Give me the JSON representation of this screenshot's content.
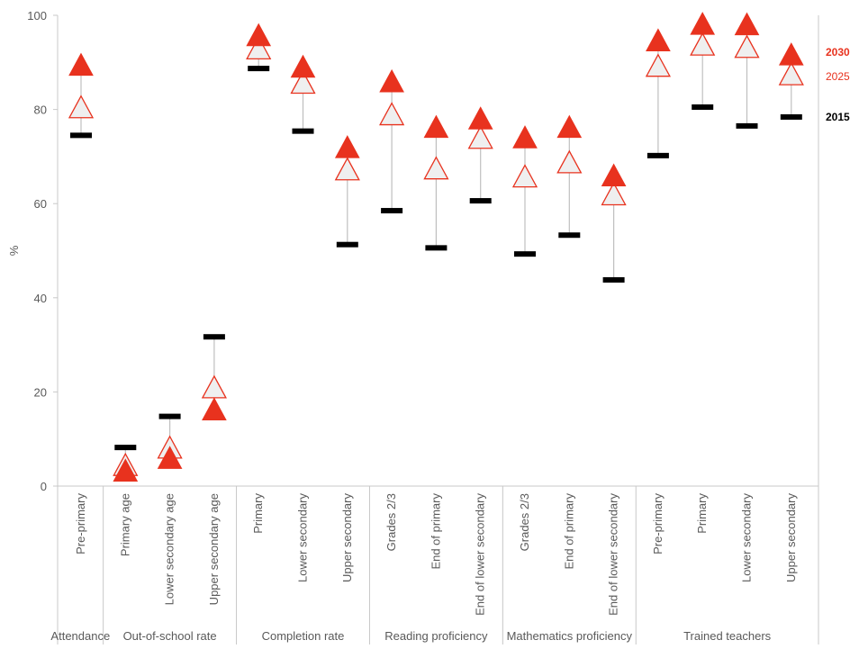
{
  "chart_data": {
    "type": "range-dot",
    "ylabel": "%",
    "ylim": [
      0,
      100
    ],
    "yticks": [
      0,
      20,
      40,
      60,
      80,
      100
    ],
    "grid": false,
    "colors": {
      "s2015": "#000000",
      "s2025": "#e8321e",
      "s2025_fill": "#efefef",
      "s2030": "#e8321e",
      "axis": "#c8c8c8",
      "range_line": "#bfbfbf",
      "tick_text": "#595959"
    },
    "groups": [
      {
        "label": "Attendance",
        "items": [
          "Pre-primary"
        ]
      },
      {
        "label": "Out-of-school rate",
        "items": [
          "Primary age",
          "Lower secondary age",
          "Upper secondary age"
        ]
      },
      {
        "label": "Completion rate",
        "items": [
          "Primary",
          "Lower secondary",
          "Upper secondary"
        ]
      },
      {
        "label": "Reading proficiency",
        "items": [
          "Grades 2/3",
          "End of primary",
          "End of lower secondary"
        ]
      },
      {
        "label": "Mathematics proficiency",
        "items": [
          "Grades 2/3",
          "End of primary",
          "End of lower secondary"
        ]
      },
      {
        "label": "Trained teachers",
        "items": [
          "Pre-primary",
          "Primary",
          "Lower secondary",
          "Upper secondary"
        ]
      }
    ],
    "categories": [
      "Pre-primary",
      "Primary age",
      "Lower secondary age",
      "Upper secondary age",
      "Primary",
      "Lower secondary",
      "Upper secondary",
      "Grades 2/3",
      "End of primary",
      "End of lower secondary",
      "Grades 2/3",
      "End of primary",
      "End of lower secondary",
      "Pre-primary",
      "Primary",
      "Lower secondary",
      "Upper secondary"
    ],
    "series": [
      {
        "name": "2015",
        "marker": "dash",
        "values": [
          74.5,
          8.2,
          14.8,
          31.7,
          88.7,
          75.4,
          51.3,
          58.5,
          50.6,
          60.6,
          49.3,
          53.3,
          43.8,
          70.2,
          80.5,
          76.5,
          78.4
        ]
      },
      {
        "name": "2025",
        "marker": "open-triangle",
        "values": [
          80.0,
          4.0,
          7.7,
          20.5,
          92.5,
          85.2,
          66.8,
          78.5,
          67.0,
          73.5,
          65.3,
          68.3,
          61.5,
          88.8,
          93.3,
          92.8,
          87.0
        ]
      },
      {
        "name": "2030",
        "marker": "filled-triangle",
        "values": [
          89.0,
          2.8,
          5.5,
          15.8,
          95.3,
          88.6,
          71.5,
          85.5,
          75.8,
          77.6,
          73.6,
          75.8,
          65.5,
          94.2,
          97.7,
          97.6,
          91.2
        ]
      }
    ]
  }
}
